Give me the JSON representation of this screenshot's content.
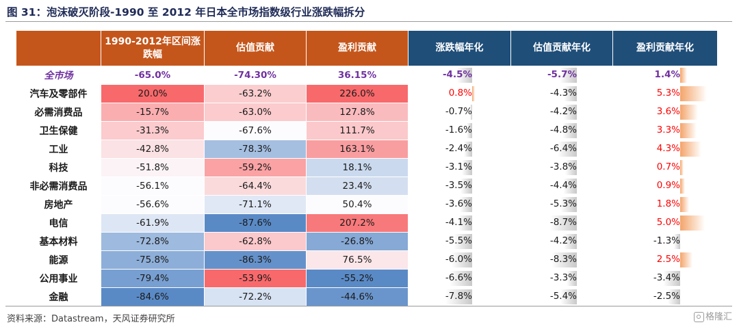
{
  "title": "图 31：泡沫破灭阶段-1990 至 2012 年日本全市场指数级行业涨跌幅拆分",
  "source": "资料来源：Datastream，天风证券研究所",
  "logo_text": "格隆汇",
  "headers": [
    "",
    "1990-2012年区间涨跌幅",
    "估值贡献",
    "盈利贡献",
    "涨跌幅年化",
    "估值贡献年化",
    "盈利贡献年化"
  ],
  "rows": [
    {
      "name": "全市场",
      "market": true,
      "v": [
        "-65.0%",
        "-74.30%",
        "36.15%",
        "-4.5%",
        "-5.7%",
        "1.4%"
      ]
    },
    {
      "name": "汽车及零部件",
      "v": [
        "20.0%",
        "-63.2%",
        "226.0%",
        "0.8%",
        "-4.3%",
        "5.3%"
      ]
    },
    {
      "name": "必需消费品",
      "v": [
        "-15.7%",
        "-63.0%",
        "127.8%",
        "-0.7%",
        "-4.2%",
        "3.6%"
      ]
    },
    {
      "name": "卫生保健",
      "v": [
        "-31.3%",
        "-67.6%",
        "111.7%",
        "-1.6%",
        "-4.8%",
        "3.3%"
      ]
    },
    {
      "name": "工业",
      "v": [
        "-42.8%",
        "-78.3%",
        "163.1%",
        "-2.4%",
        "-6.4%",
        "4.3%"
      ]
    },
    {
      "name": "科技",
      "v": [
        "-51.8%",
        "-59.2%",
        "18.1%",
        "-3.1%",
        "-3.8%",
        "0.7%"
      ]
    },
    {
      "name": "非必需消费品",
      "v": [
        "-56.1%",
        "-64.4%",
        "23.4%",
        "-3.5%",
        "-4.4%",
        "0.9%"
      ]
    },
    {
      "name": "房地产",
      "v": [
        "-56.6%",
        "-71.1%",
        "50.4%",
        "-3.6%",
        "-5.3%",
        "1.8%"
      ]
    },
    {
      "name": "电信",
      "v": [
        "-61.9%",
        "-87.6%",
        "207.2%",
        "-4.1%",
        "-8.7%",
        "5.0%"
      ]
    },
    {
      "name": "基本材料",
      "v": [
        "-72.8%",
        "-62.8%",
        "-26.8%",
        "-5.5%",
        "-4.2%",
        "-1.3%"
      ]
    },
    {
      "name": "能源",
      "v": [
        "-75.8%",
        "-86.3%",
        "76.5%",
        "-6.0%",
        "-8.3%",
        "2.5%"
      ]
    },
    {
      "name": "公用事业",
      "v": [
        "-79.4%",
        "-53.9%",
        "-55.2%",
        "-6.6%",
        "-3.3%",
        "-3.4%"
      ]
    },
    {
      "name": "金融",
      "v": [
        "-84.6%",
        "-72.2%",
        "-44.6%",
        "-7.8%",
        "-5.4%",
        "-2.5%"
      ]
    }
  ],
  "colors": {
    "header_orange": "#c5561b",
    "header_blue": "#1f4e79",
    "heat_red": "#f8696b",
    "heat_white": "#fcfcff",
    "heat_blue": "#5a8ac6",
    "market_text": "#7030a0",
    "positive_text": "#ff0000",
    "gray_bar": "#c8c8c8",
    "orange_bar": "#f4a46a"
  }
}
